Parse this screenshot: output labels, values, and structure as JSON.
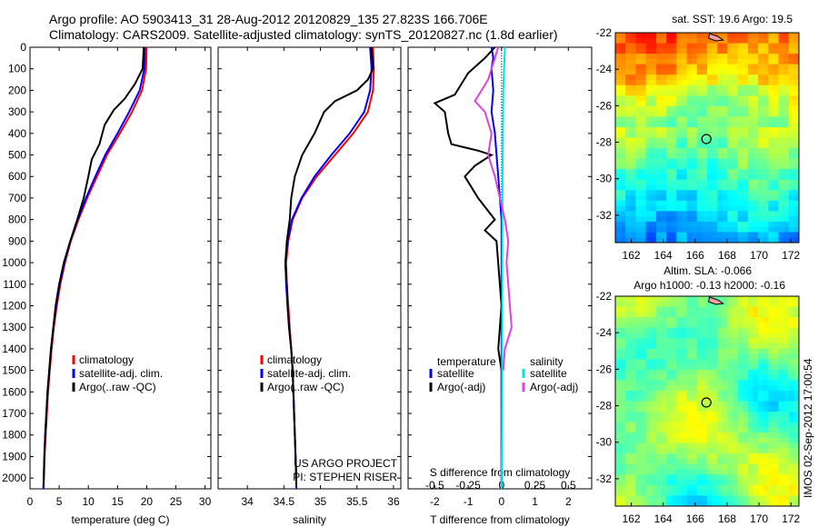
{
  "title": {
    "line1": "Argo profile: AO 5903413_31 28-Aug-2012 20120829_135 27.823S 166.706E",
    "line2": "Climatology: CARS2009. Satellite-adjusted climatology: synTS_20120827.nc (1.8d earlier)"
  },
  "colors": {
    "climatology": "#ff0000",
    "satellite": "#0000ff",
    "argo": "#000000",
    "salinity_satellite": "#00e5e5",
    "salinity_argo": "#e040e0"
  },
  "chart_data": [
    {
      "type": "line",
      "panel": "temperature",
      "xlabel": "temperature (deg C)",
      "xlim": [
        0,
        31
      ],
      "xticks": [
        0,
        5,
        10,
        15,
        20,
        25,
        30
      ],
      "ylim": [
        0,
        2050
      ],
      "y_reversed": true,
      "yticks": [
        0,
        100,
        200,
        300,
        400,
        500,
        600,
        700,
        800,
        900,
        1000,
        1100,
        1200,
        1300,
        1400,
        1500,
        1600,
        1700,
        1800,
        1900,
        2000
      ],
      "legend": [
        "climatology",
        "satellite-adj. clim.",
        "Argo(..raw -QC)"
      ],
      "legend_position": "lower-right",
      "series": [
        {
          "name": "climatology",
          "color_key": "climatology",
          "points": [
            [
              20.0,
              0
            ],
            [
              19.9,
              100
            ],
            [
              19.2,
              200
            ],
            [
              17.5,
              300
            ],
            [
              15.4,
              400
            ],
            [
              13.2,
              500
            ],
            [
              11.5,
              600
            ],
            [
              9.8,
              700
            ],
            [
              8.3,
              800
            ],
            [
              7.0,
              900
            ],
            [
              6.0,
              1000
            ],
            [
              5.2,
              1100
            ],
            [
              4.6,
              1200
            ],
            [
              4.1,
              1300
            ],
            [
              3.7,
              1400
            ],
            [
              3.4,
              1500
            ],
            [
              3.1,
              1600
            ],
            [
              2.9,
              1700
            ],
            [
              2.7,
              1800
            ],
            [
              2.5,
              1900
            ],
            [
              2.4,
              2000
            ],
            [
              2.3,
              2050
            ]
          ]
        },
        {
          "name": "satellite-adj. clim.",
          "color_key": "satellite",
          "points": [
            [
              19.7,
              0
            ],
            [
              19.6,
              100
            ],
            [
              18.8,
              200
            ],
            [
              17.0,
              300
            ],
            [
              15.0,
              400
            ],
            [
              12.9,
              500
            ],
            [
              11.2,
              600
            ],
            [
              9.6,
              700
            ],
            [
              8.2,
              800
            ],
            [
              6.9,
              900
            ],
            [
              5.9,
              1000
            ],
            [
              5.1,
              1100
            ],
            [
              4.5,
              1200
            ],
            [
              4.0,
              1300
            ],
            [
              3.6,
              1400
            ],
            [
              3.3,
              1500
            ],
            [
              3.0,
              1600
            ],
            [
              2.8,
              1700
            ],
            [
              2.6,
              1800
            ],
            [
              2.5,
              1900
            ],
            [
              2.35,
              2000
            ],
            [
              2.3,
              2050
            ]
          ]
        },
        {
          "name": "Argo(..raw -QC)",
          "color_key": "argo",
          "points": [
            [
              19.5,
              0
            ],
            [
              19.3,
              100
            ],
            [
              18.0,
              170
            ],
            [
              16.2,
              240
            ],
            [
              14.4,
              290
            ],
            [
              12.8,
              360
            ],
            [
              11.9,
              450
            ],
            [
              10.6,
              520
            ],
            [
              10.0,
              600
            ],
            [
              9.2,
              700
            ],
            [
              8.1,
              800
            ],
            [
              6.9,
              900
            ],
            [
              5.8,
              1000
            ],
            [
              5.0,
              1100
            ],
            [
              4.4,
              1200
            ],
            [
              4.0,
              1300
            ],
            [
              3.6,
              1400
            ],
            [
              3.3,
              1500
            ],
            [
              3.0,
              1600
            ],
            [
              2.8,
              1700
            ],
            [
              2.6,
              1800
            ],
            [
              2.45,
              1900
            ],
            [
              2.35,
              2000
            ],
            [
              2.3,
              2040
            ]
          ]
        }
      ]
    },
    {
      "type": "line",
      "panel": "salinity",
      "xlabel": "salinity",
      "xlim": [
        33.6,
        36.1
      ],
      "xticks": [
        34,
        34.5,
        35,
        35.5,
        36
      ],
      "ylim": [
        0,
        2050
      ],
      "y_reversed": true,
      "legend": [
        "climatology",
        "satellite-adj. clim.",
        "Argo(..raw -QC)"
      ],
      "legend_position": "lower-right",
      "annotation": [
        "US ARGO PROJECT",
        "PI: STEPHEN RISER"
      ],
      "series": [
        {
          "name": "climatology",
          "color_key": "climatology",
          "points": [
            [
              35.72,
              0
            ],
            [
              35.73,
              100
            ],
            [
              35.72,
              200
            ],
            [
              35.65,
              300
            ],
            [
              35.45,
              400
            ],
            [
              35.2,
              500
            ],
            [
              34.95,
              600
            ],
            [
              34.75,
              700
            ],
            [
              34.62,
              800
            ],
            [
              34.56,
              900
            ],
            [
              34.53,
              1000
            ],
            [
              34.54,
              1100
            ],
            [
              34.56,
              1200
            ],
            [
              34.58,
              1300
            ],
            [
              34.6,
              1400
            ],
            [
              34.62,
              1500
            ],
            [
              34.63,
              1600
            ],
            [
              34.64,
              1700
            ],
            [
              34.65,
              1800
            ],
            [
              34.66,
              1900
            ],
            [
              34.67,
              2000
            ],
            [
              34.67,
              2050
            ]
          ]
        },
        {
          "name": "satellite-adj. clim.",
          "color_key": "satellite",
          "points": [
            [
              35.68,
              0
            ],
            [
              35.7,
              100
            ],
            [
              35.68,
              200
            ],
            [
              35.6,
              300
            ],
            [
              35.4,
              400
            ],
            [
              35.15,
              500
            ],
            [
              34.92,
              600
            ],
            [
              34.74,
              700
            ],
            [
              34.61,
              800
            ],
            [
              34.55,
              900
            ],
            [
              34.52,
              1000
            ],
            [
              34.53,
              1100
            ],
            [
              34.55,
              1200
            ],
            [
              34.57,
              1300
            ],
            [
              34.6,
              1400
            ],
            [
              34.62,
              1500
            ],
            [
              34.63,
              1600
            ],
            [
              34.64,
              1700
            ],
            [
              34.65,
              1800
            ],
            [
              34.66,
              1900
            ],
            [
              34.67,
              2000
            ],
            [
              34.67,
              2050
            ]
          ]
        },
        {
          "name": "Argo(..raw -QC)",
          "color_key": "argo",
          "points": [
            [
              35.7,
              0
            ],
            [
              35.72,
              100
            ],
            [
              35.65,
              150
            ],
            [
              35.5,
              200
            ],
            [
              35.2,
              250
            ],
            [
              35.05,
              300
            ],
            [
              34.92,
              400
            ],
            [
              34.75,
              500
            ],
            [
              34.65,
              600
            ],
            [
              34.6,
              700
            ],
            [
              34.58,
              800
            ],
            [
              34.54,
              900
            ],
            [
              34.52,
              1000
            ],
            [
              34.54,
              1100
            ],
            [
              34.55,
              1200
            ],
            [
              34.57,
              1300
            ],
            [
              34.6,
              1400
            ],
            [
              34.62,
              1500
            ],
            [
              34.63,
              1600
            ],
            [
              34.64,
              1700
            ],
            [
              34.65,
              1800
            ],
            [
              34.66,
              1900
            ],
            [
              34.67,
              2000
            ],
            [
              34.67,
              2040
            ]
          ]
        }
      ]
    },
    {
      "type": "line",
      "panel": "difference",
      "xlabel_top": "S difference from climatology",
      "xlabel": "T difference from climatology",
      "xlim": [
        -2.8,
        2.7
      ],
      "xticks": [
        -2,
        -1,
        0,
        1,
        2
      ],
      "xticks_top": [
        "-0.5",
        "-0.25",
        "0",
        "0.25",
        "0.5"
      ],
      "xticks_top_at_t": [
        -2,
        -1,
        0,
        1,
        2
      ],
      "ylim": [
        0,
        2050
      ],
      "y_reversed": true,
      "legend_temperature": {
        "header": "temperature",
        "items": [
          "satellite",
          "Argo(-adj)"
        ]
      },
      "legend_salinity": {
        "header": "salinity",
        "items": [
          "satellite",
          "Argo(-adj)"
        ]
      },
      "series": [
        {
          "name": "satellite",
          "group": "temperature",
          "color_key": "satellite",
          "points": [
            [
              -0.3,
              0
            ],
            [
              -0.25,
              50
            ],
            [
              -0.3,
              100
            ],
            [
              -0.25,
              200
            ],
            [
              -0.3,
              300
            ],
            [
              -0.2,
              400
            ],
            [
              -0.15,
              500
            ],
            [
              -0.1,
              600
            ],
            [
              -0.05,
              700
            ],
            [
              0,
              800
            ],
            [
              0,
              2050
            ]
          ]
        },
        {
          "name": "Argo(-adj)",
          "group": "temperature",
          "color_key": "argo",
          "points": [
            [
              -0.2,
              0
            ],
            [
              -0.5,
              50
            ],
            [
              -1.0,
              120
            ],
            [
              -1.4,
              220
            ],
            [
              -2.0,
              260
            ],
            [
              -1.7,
              300
            ],
            [
              -1.6,
              400
            ],
            [
              -1.5,
              450
            ],
            [
              -0.7,
              480
            ],
            [
              -0.3,
              500
            ],
            [
              -0.8,
              550
            ],
            [
              -1.1,
              600
            ],
            [
              -0.7,
              700
            ],
            [
              -0.2,
              800
            ],
            [
              -0.5,
              850
            ],
            [
              -0.15,
              900
            ],
            [
              0,
              1200
            ],
            [
              -0.1,
              1400
            ],
            [
              0,
              1500
            ],
            [
              0,
              2050
            ]
          ]
        },
        {
          "name": "satellite",
          "group": "salinity",
          "color_key": "salinity_satellite",
          "points": [
            [
              0.1,
              0
            ],
            [
              0.05,
              200
            ],
            [
              0.03,
              600
            ],
            [
              0.02,
              1200
            ],
            [
              0.01,
              1800
            ],
            [
              0,
              2050
            ]
          ]
        },
        {
          "name": "Argo(-adj)",
          "group": "salinity",
          "color_key": "salinity_argo",
          "points": [
            [
              -0.1,
              0
            ],
            [
              -0.4,
              150
            ],
            [
              -0.8,
              250
            ],
            [
              -0.5,
              300
            ],
            [
              -0.3,
              400
            ],
            [
              -0.4,
              500
            ],
            [
              -0.2,
              600
            ],
            [
              0.1,
              800
            ],
            [
              0.2,
              900
            ],
            [
              0.15,
              1000
            ],
            [
              0.2,
              1100
            ],
            [
              0.25,
              1200
            ],
            [
              0.3,
              1300
            ],
            [
              0.1,
              1400
            ],
            [
              0.05,
              1500
            ]
          ]
        }
      ]
    },
    {
      "type": "heatmap",
      "panel": "sst-map",
      "title": "sat. SST: 19.6 Argo: 19.5",
      "xlim": [
        161,
        172.5
      ],
      "xticks": [
        162,
        164,
        166,
        168,
        170,
        172
      ],
      "ylim": [
        -33.5,
        -22
      ],
      "yticks": [
        -22,
        -24,
        -26,
        -28,
        -30,
        -32
      ],
      "marker": {
        "lon": 166.706,
        "lat": -27.823
      },
      "colormap": "jet",
      "color_scale": "warm in north, cool in south"
    },
    {
      "type": "heatmap",
      "panel": "sla-map",
      "title_lines": [
        "Altim. SLA: -0.066",
        "Argo h1000: -0.13 h2000: -0.16"
      ],
      "xlim": [
        161,
        172.5
      ],
      "xticks": [
        162,
        164,
        166,
        168,
        170,
        172
      ],
      "ylim": [
        -33.5,
        -22
      ],
      "yticks": [
        -22,
        -24,
        -26,
        -28,
        -30,
        -32
      ],
      "marker": {
        "lon": 166.706,
        "lat": -27.823
      },
      "colormap": "jet",
      "side_label": "IMOS 02-Sep-2012 17:00:54"
    }
  ]
}
